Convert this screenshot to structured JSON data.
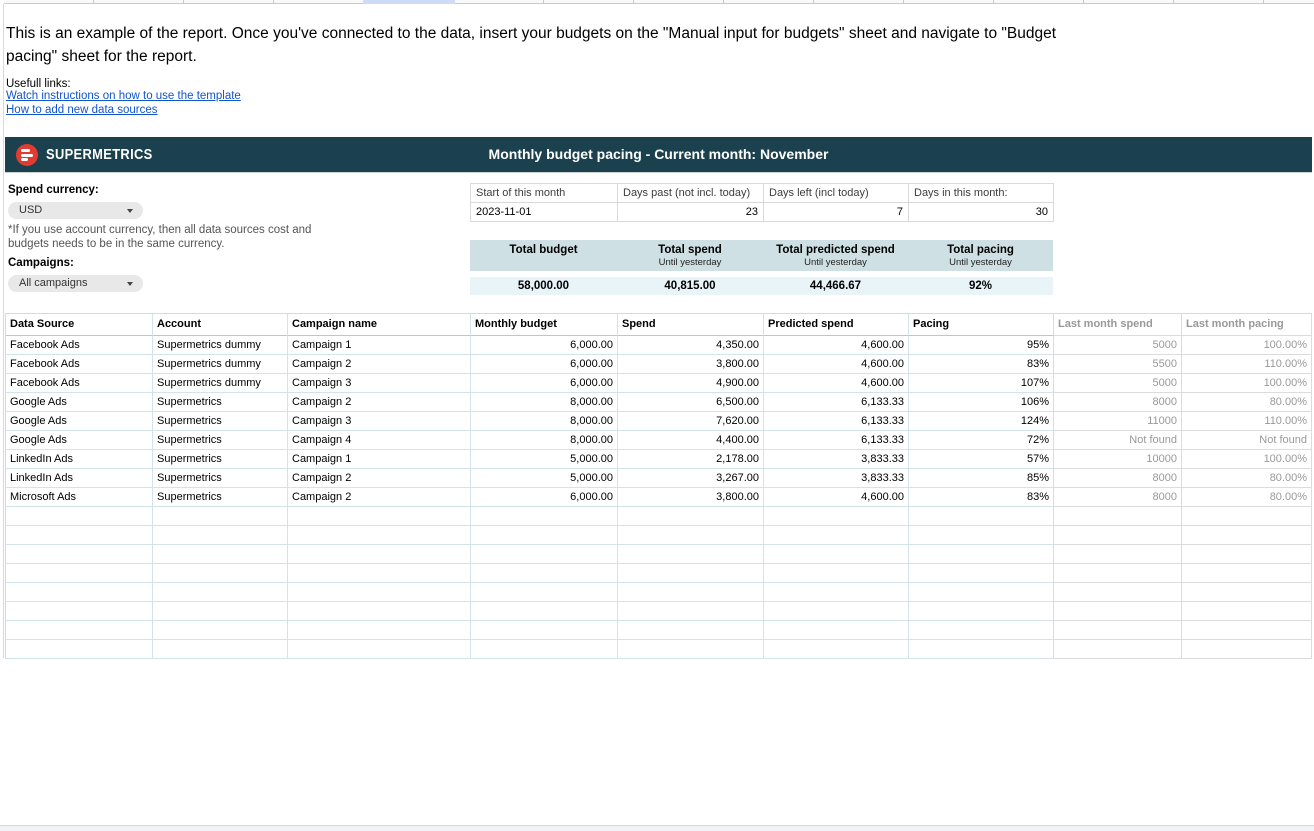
{
  "page": {
    "intro": "This is an example of the report. Once you've connected to the data, insert your budgets on the \"Manual input for budgets\" sheet and navigate to \"Budget pacing\" sheet for the report.",
    "links_label": "Usefull links:",
    "links": [
      "Watch instructions on how to use the template",
      "How to add new data sources"
    ]
  },
  "header": {
    "brand": "SUPERMETRICS",
    "title": "Monthly budget pacing - Current month: November"
  },
  "controls": {
    "spend_currency_label": "Spend currency:",
    "spend_currency_value": "USD",
    "currency_note": "*If you use account currency, then all data sources cost and budgets needs to be in the same currency.",
    "campaigns_label": "Campaigns:",
    "campaigns_value": "All campaigns"
  },
  "days_info": {
    "headers": [
      "Start of this month",
      "Days past (not incl. today)",
      "Days left (incl today)",
      "Days in this month:"
    ],
    "values": [
      "2023-11-01",
      "23",
      "7",
      "30"
    ]
  },
  "totals": {
    "columns": [
      {
        "label": "Total budget",
        "sublabel": "",
        "value": "58,000.00"
      },
      {
        "label": "Total spend",
        "sublabel": "Until yesterday",
        "value": "40,815.00"
      },
      {
        "label": "Total predicted spend",
        "sublabel": "Until yesterday",
        "value": "44,466.67"
      },
      {
        "label": "Total pacing",
        "sublabel": "Until yesterday",
        "value": "92%"
      }
    ]
  },
  "table": {
    "headers": [
      "Data Source",
      "Account",
      "Campaign name",
      "Monthly budget",
      "Spend",
      "Predicted spend",
      "Pacing",
      "Last month spend",
      "Last month pacing"
    ],
    "rows": [
      [
        "Facebook Ads",
        "Supermetrics dummy",
        "Campaign 1",
        "6,000.00",
        "4,350.00",
        "4,600.00",
        "95%",
        "5000",
        "100.00%"
      ],
      [
        "Facebook Ads",
        "Supermetrics dummy",
        "Campaign 2",
        "6,000.00",
        "3,800.00",
        "4,600.00",
        "83%",
        "5500",
        "110.00%"
      ],
      [
        "Facebook Ads",
        "Supermetrics dummy",
        "Campaign 3",
        "6,000.00",
        "4,900.00",
        "4,600.00",
        "107%",
        "5000",
        "100.00%"
      ],
      [
        "Google Ads",
        "Supermetrics",
        "Campaign 2",
        "8,000.00",
        "6,500.00",
        "6,133.33",
        "106%",
        "8000",
        "80.00%"
      ],
      [
        "Google Ads",
        "Supermetrics",
        "Campaign 3",
        "8,000.00",
        "7,620.00",
        "6,133.33",
        "124%",
        "11000",
        "110.00%"
      ],
      [
        "Google Ads",
        "Supermetrics",
        "Campaign 4",
        "8,000.00",
        "4,400.00",
        "6,133.33",
        "72%",
        "Not found",
        "Not found"
      ],
      [
        "LinkedIn Ads",
        "Supermetrics",
        "Campaign 1",
        "5,000.00",
        "2,178.00",
        "3,833.33",
        "57%",
        "10000",
        "100.00%"
      ],
      [
        "LinkedIn Ads",
        "Supermetrics",
        "Campaign 2",
        "5,000.00",
        "3,267.00",
        "3,833.33",
        "85%",
        "8000",
        "80.00%"
      ],
      [
        "Microsoft Ads",
        "Supermetrics",
        "Campaign 2",
        "6,000.00",
        "3,800.00",
        "4,600.00",
        "83%",
        "8000",
        "80.00%"
      ]
    ],
    "empty_row_count": 8
  },
  "colors": {
    "header_bar": "#1b414e",
    "logo_red": "#e23b31",
    "totals_header_bg": "#cfe0e4",
    "totals_values_bg": "#e9f4f8",
    "link_blue": "#1155cc",
    "table_border_blue": "#d4e3e7",
    "muted_text": "#999999"
  }
}
